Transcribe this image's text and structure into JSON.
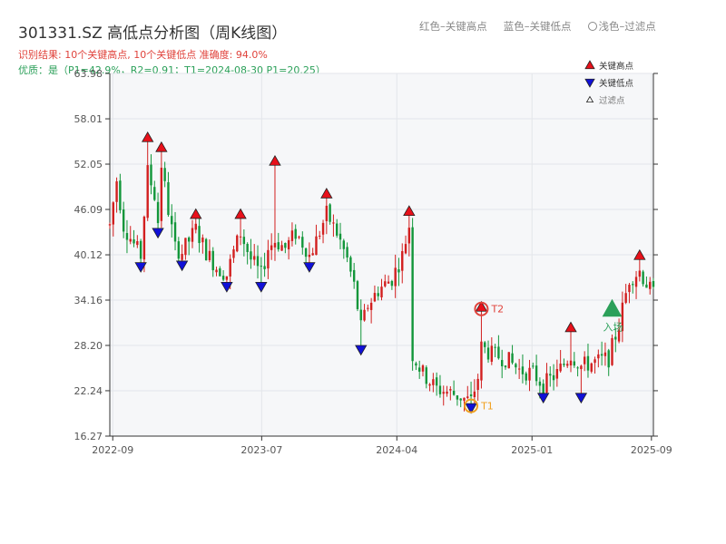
{
  "header": {
    "title": "301331.SZ 高低点分析图（周K线图）",
    "result_line": "识别结果: 10个关键高点, 10个关键低点   准确度: 94.0%",
    "quality_line": "优质：是（P1=42.9%，R2=0.91；T1=2024-08-30 P1=20.25）"
  },
  "top_legend": {
    "red": "红色–关键高点",
    "blue": "蓝色–关键低点",
    "light": "浅色–过滤点"
  },
  "colors": {
    "up": "#d21f1f",
    "down": "#12963a",
    "high_marker": "#e8101a",
    "low_marker": "#1010d8",
    "signal": "#2ca05a",
    "t_marker": "#e0433c",
    "t1_marker": "#f0a020",
    "plot_bg": "#f6f7f9"
  },
  "chart_data": {
    "type": "candlestick",
    "y_ticks": [
      "16.27",
      "22.24",
      "28.20",
      "34.16",
      "40.12",
      "46.09",
      "52.05",
      "58.01",
      "63.98"
    ],
    "ylim": [
      16.27,
      63.98
    ],
    "x_ticks": [
      "2022-09",
      "2023-07",
      "2024-04",
      "2025-01",
      "2025-09"
    ],
    "x_range": [
      "2022-08-26",
      "2025-09-05"
    ],
    "legend": [
      {
        "label": "关键高点",
        "marker": "triangle-up",
        "color": "#e8101a"
      },
      {
        "label": "关键低点",
        "marker": "triangle-down",
        "color": "#1010d8"
      },
      {
        "label": "过滤点",
        "marker": "triangle-up-small",
        "color": "#ffffff"
      }
    ],
    "key_highs": [
      {
        "date": "2022-11-11",
        "price": 55.3
      },
      {
        "date": "2022-12-09",
        "price": 54.0
      },
      {
        "date": "2023-02-17",
        "price": 45.2
      },
      {
        "date": "2023-05-19",
        "price": 45.2
      },
      {
        "date": "2023-07-28",
        "price": 52.2
      },
      {
        "date": "2023-11-10",
        "price": 47.9
      },
      {
        "date": "2024-04-26",
        "price": 45.6
      },
      {
        "date": "2024-09-20",
        "price": 33.0
      },
      {
        "date": "2025-03-21",
        "price": 30.3
      },
      {
        "date": "2025-08-08",
        "price": 39.8
      }
    ],
    "key_lows": [
      {
        "date": "2022-10-28",
        "price": 38.8
      },
      {
        "date": "2022-12-02",
        "price": 43.3
      },
      {
        "date": "2023-01-20",
        "price": 39.0
      },
      {
        "date": "2023-04-21",
        "price": 36.2
      },
      {
        "date": "2023-06-30",
        "price": 36.2
      },
      {
        "date": "2023-10-06",
        "price": 38.8
      },
      {
        "date": "2024-01-19",
        "price": 27.9
      },
      {
        "date": "2025-01-24",
        "price": 21.6
      },
      {
        "date": "2025-04-11",
        "price": 21.6
      },
      {
        "date": "2024-08-30",
        "price": 20.25
      }
    ],
    "annotations": [
      {
        "label": "T2",
        "date": "2024-09-20",
        "price": 33.0
      },
      {
        "label": "T1",
        "date": "2024-08-30",
        "price": 20.25
      },
      {
        "label": "入场",
        "date": "2025-06-13",
        "price": 33.0
      }
    ],
    "series_anchors": [
      [
        "2022-08-26",
        44.0
      ],
      [
        "2022-09-09",
        50.0
      ],
      [
        "2022-09-23",
        44.0
      ],
      [
        "2022-10-14",
        41.5
      ],
      [
        "2022-10-28",
        40.0
      ],
      [
        "2022-11-11",
        51.0
      ],
      [
        "2022-11-25",
        48.0
      ],
      [
        "2022-12-02",
        44.5
      ],
      [
        "2022-12-09",
        52.0
      ],
      [
        "2022-12-23",
        46.0
      ],
      [
        "2023-01-06",
        41.0
      ],
      [
        "2023-01-20",
        40.5
      ],
      [
        "2023-02-03",
        42.0
      ],
      [
        "2023-02-17",
        43.5
      ],
      [
        "2023-03-10",
        40.5
      ],
      [
        "2023-03-31",
        38.5
      ],
      [
        "2023-04-21",
        37.5
      ],
      [
        "2023-05-05",
        40.5
      ],
      [
        "2023-05-19",
        43.0
      ],
      [
        "2023-06-09",
        39.5
      ],
      [
        "2023-06-30",
        37.5
      ],
      [
        "2023-07-14",
        41.0
      ],
      [
        "2023-07-28",
        42.0
      ],
      [
        "2023-08-18",
        41.0
      ],
      [
        "2023-09-08",
        43.0
      ],
      [
        "2023-09-29",
        41.0
      ],
      [
        "2023-10-06",
        40.0
      ],
      [
        "2023-10-20",
        42.0
      ],
      [
        "2023-11-10",
        45.5
      ],
      [
        "2023-12-01",
        43.0
      ],
      [
        "2023-12-22",
        39.5
      ],
      [
        "2024-01-05",
        36.0
      ],
      [
        "2024-01-19",
        30.5
      ],
      [
        "2024-02-02",
        33.5
      ],
      [
        "2024-02-23",
        35.5
      ],
      [
        "2024-03-22",
        37.0
      ],
      [
        "2024-04-12",
        40.0
      ],
      [
        "2024-04-26",
        44.0
      ],
      [
        "2024-05-03",
        27.0
      ],
      [
        "2024-05-24",
        24.5
      ],
      [
        "2024-06-21",
        22.5
      ],
      [
        "2024-07-19",
        22.0
      ],
      [
        "2024-08-30",
        20.8
      ],
      [
        "2024-09-13",
        24.0
      ],
      [
        "2024-09-20",
        28.0
      ],
      [
        "2024-10-11",
        27.0
      ],
      [
        "2024-11-08",
        26.5
      ],
      [
        "2024-12-06",
        25.0
      ],
      [
        "2025-01-03",
        24.5
      ],
      [
        "2025-01-24",
        23.0
      ],
      [
        "2025-02-21",
        24.5
      ],
      [
        "2025-03-21",
        27.0
      ],
      [
        "2025-04-11",
        25.5
      ],
      [
        "2025-05-09",
        26.0
      ],
      [
        "2025-06-06",
        26.5
      ],
      [
        "2025-06-27",
        31.0
      ],
      [
        "2025-07-18",
        37.0
      ],
      [
        "2025-08-08",
        38.0
      ],
      [
        "2025-08-29",
        35.5
      ],
      [
        "2025-09-05",
        35.0
      ]
    ]
  }
}
